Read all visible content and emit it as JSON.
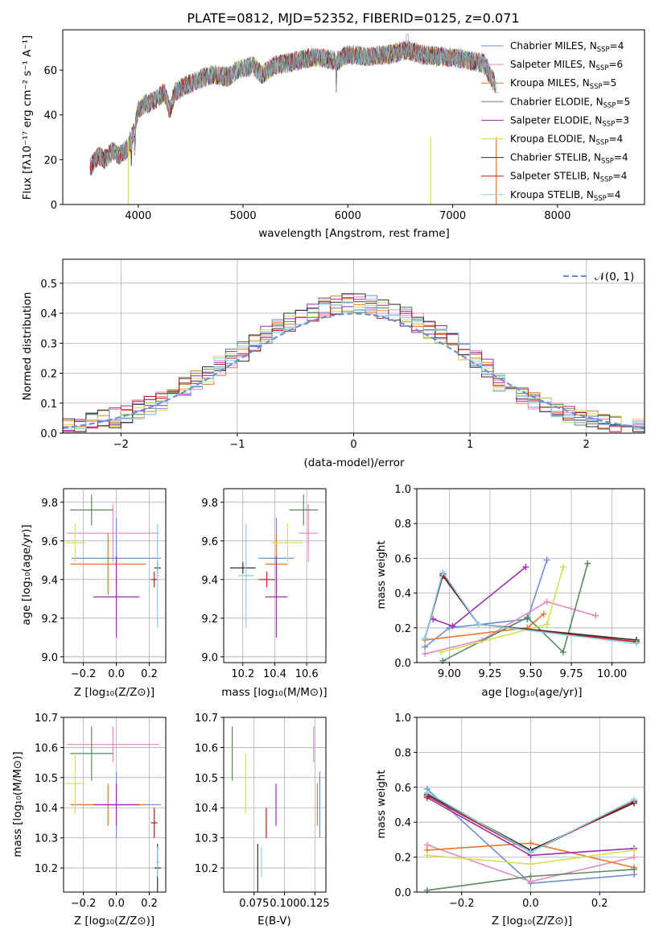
{
  "figure": {
    "title": "PLATE=0812, MJD=52352, FIBERID=0125, z=0.071"
  },
  "models": [
    {
      "name": "Chabrier MILES",
      "nssp": "4",
      "color": "#6b8fd6",
      "age": 9.51,
      "age_err": 0.21,
      "mass": 10.41,
      "mass_err": 0.11,
      "Z": 0.0,
      "Z_err": 0.27,
      "ebv": 0.129,
      "ebv_err": 0.02
    },
    {
      "name": "Salpeter MILES",
      "nssp": "6",
      "color": "#e68ac0",
      "age": 9.64,
      "age_err": 0.15,
      "mass": 10.61,
      "mass_err": 0.06,
      "Z": -0.02,
      "Z_err": 0.28,
      "ebv": 0.124,
      "ebv_err": 0.067
    },
    {
      "name": "Kroupa MILES",
      "nssp": "5",
      "color": "#e5792c",
      "age": 9.48,
      "age_err": 0.16,
      "mass": 10.41,
      "mass_err": 0.07,
      "Z": -0.05,
      "Z_err": 0.23,
      "ebv": 0.127,
      "ebv_err": 0.11
    },
    {
      "name": "Chabrier ELODIE",
      "nssp": "5",
      "color": "#5a8a5e",
      "age": 9.76,
      "age_err": 0.08,
      "mass": 10.58,
      "mass_err": 0.09,
      "Z": -0.15,
      "Z_err": 0.13,
      "ebv": 0.057,
      "ebv_err": 0.095
    },
    {
      "name": "Salpeter ELODIE",
      "nssp": "3",
      "color": "#9b2fb0",
      "age": 9.31,
      "age_err": 0.21,
      "mass": 10.41,
      "mass_err": 0.07,
      "Z": 0.0,
      "Z_err": 0.14,
      "ebv": 0.093,
      "ebv_err": 0.05
    },
    {
      "name": "Kroupa ELODIE",
      "nssp": "4",
      "color": "#d4e050",
      "age": 9.59,
      "age_err": 0.1,
      "mass": 10.48,
      "mass_err": 0.1,
      "Z": -0.25,
      "Z_err": 0.06,
      "ebv": 0.068,
      "ebv_err": 0.1
    },
    {
      "name": "Chabrier STELIB",
      "nssp": "4",
      "color": "#2e2e2e",
      "age": 9.46,
      "age_err": 0.03,
      "mass": 10.2,
      "mass_err": 0.08,
      "Z": 0.25,
      "Z_err": 0.02,
      "ebv": 0.078,
      "ebv_err": 0.05
    },
    {
      "name": "Salpeter STELIB",
      "nssp": "4",
      "color": "#b81c1c",
      "age": 9.4,
      "age_err": 0.04,
      "mass": 10.35,
      "mass_err": 0.05,
      "Z": 0.23,
      "Z_err": 0.02,
      "ebv": 0.085,
      "ebv_err": 0.04
    },
    {
      "name": "Kroupa STELIB",
      "nssp": "4",
      "color": "#88d2e6",
      "age": 9.42,
      "age_err": 0.27,
      "mass": 10.22,
      "mass_err": 0.05,
      "Z": 0.25,
      "Z_err": 0.01,
      "ebv": 0.081,
      "ebv_err": 0.02
    }
  ],
  "chart_data": [
    {
      "type": "line",
      "panel": "spectrum",
      "title": "PLATE=0812, MJD=52352, FIBERID=0125, z=0.071",
      "xlabel": "wavelength [Angstrom, rest frame]",
      "ylabel": "Flux [fλ10⁻¹⁷ erg cm⁻² s⁻¹ A⁻¹]",
      "xlim": [
        3280,
        8830
      ],
      "ylim": [
        0,
        78
      ],
      "xticks": [
        "4000",
        "5000",
        "6000",
        "7000",
        "8000"
      ],
      "yticks": [
        "0",
        "20",
        "40",
        "60"
      ],
      "legend": "top-right",
      "spectrum_anchors": {
        "x": [
          3550,
          3620,
          3680,
          3750,
          3820,
          3900,
          3960,
          4000,
          4060,
          4100,
          4200,
          4250,
          4300,
          4350,
          4450,
          4550,
          4700,
          4861,
          4950,
          5100,
          5175,
          5300,
          5500,
          5700,
          5890,
          6000,
          6200,
          6400,
          6563,
          6700,
          6900,
          7100,
          7300,
          7400
        ],
        "y": [
          17,
          22,
          20,
          24,
          22,
          25,
          33,
          42,
          45,
          45,
          48,
          50,
          42,
          50,
          53,
          55,
          58,
          57,
          60,
          62,
          58,
          62,
          64,
          66,
          64,
          67,
          66,
          67,
          69,
          67,
          66,
          65,
          63,
          54
        ]
      }
    },
    {
      "type": "bar",
      "panel": "residual-histogram",
      "xlabel": "(data-model)/error",
      "ylabel": "Normed distribution",
      "xlim": [
        -2.5,
        2.5
      ],
      "ylim": [
        0,
        0.58
      ],
      "xticks": [
        "−2",
        "−1",
        "0",
        "1",
        "2"
      ],
      "yticks": [
        "0.0",
        "0.1",
        "0.2",
        "0.3",
        "0.4",
        "0.5"
      ],
      "legend_label": "𝒩(0, 1)",
      "legend": "top-right",
      "bin_width": 0.1,
      "gaussian": {
        "mean": 0,
        "sigma": 1,
        "color": "#6b8fd6"
      }
    },
    {
      "type": "scatter",
      "panel": "age-vs-Z",
      "xlabel": "Z [log₁₀(Z/Z⊙)]",
      "ylabel": "age  [log₁₀(age/yr)]",
      "xlim": [
        -0.32,
        0.3
      ],
      "ylim": [
        8.97,
        9.87
      ],
      "xticks": [
        -0.2,
        0.0,
        0.2
      ],
      "xtick_labels": [
        "−0.2",
        "0.0",
        "0.2"
      ],
      "yticks": [
        9.0,
        9.2,
        9.4,
        9.6,
        9.8
      ],
      "ytick_labels": [
        "9.0",
        "9.2",
        "9.4",
        "9.6",
        "9.8"
      ]
    },
    {
      "type": "scatter",
      "panel": "age-vs-mass",
      "xlabel": "mass [log₁₀(M/M⊙)]",
      "ylabel": "",
      "xlim": [
        10.08,
        10.72
      ],
      "ylim": [
        8.97,
        9.87
      ],
      "xticks": [
        10.2,
        10.4,
        10.6
      ],
      "xtick_labels": [
        "10.2",
        "10.4",
        "10.6"
      ],
      "yticks": [
        9.0,
        9.2,
        9.4,
        9.6,
        9.8
      ],
      "ytick_labels": [
        "9.0",
        "9.2",
        "9.4",
        "9.6",
        "9.8"
      ]
    },
    {
      "type": "line",
      "panel": "mass-weight-vs-age",
      "xlabel": "age  [log₁₀(age/yr)]",
      "ylabel": "mass weight",
      "xlim": [
        8.8,
        10.2
      ],
      "ylim": [
        0,
        1
      ],
      "xticks": [
        9.0,
        9.25,
        9.5,
        9.75,
        10.0
      ],
      "xtick_labels": [
        "9.00",
        "9.25",
        "9.50",
        "9.75",
        "10.00"
      ],
      "yticks": [
        0,
        0.2,
        0.4,
        0.6,
        0.8,
        1.0
      ],
      "ytick_labels": [
        "0.0",
        "0.2",
        "0.4",
        "0.6",
        "0.8",
        "1.0"
      ],
      "series": [
        {
          "color": "#6b8fd6",
          "x": [
            8.85,
            9.0,
            9.48,
            9.6
          ],
          "y": [
            0.09,
            0.2,
            0.25,
            0.59
          ]
        },
        {
          "color": "#e68ac0",
          "x": [
            8.85,
            9.2,
            9.6,
            9.9
          ],
          "y": [
            0.05,
            0.13,
            0.35,
            0.27
          ]
        },
        {
          "color": "#e5792c",
          "x": [
            8.85,
            9.48,
            9.58
          ],
          "y": [
            0.13,
            0.2,
            0.28
          ]
        },
        {
          "color": "#5a8a5e",
          "x": [
            8.96,
            9.48,
            9.7,
            9.85
          ],
          "y": [
            0.01,
            0.26,
            0.06,
            0.57
          ]
        },
        {
          "color": "#9b2fb0",
          "x": [
            8.9,
            9.02,
            9.47
          ],
          "y": [
            0.25,
            0.21,
            0.55
          ]
        },
        {
          "color": "#d4e050",
          "x": [
            8.95,
            9.6,
            9.7
          ],
          "y": [
            0.06,
            0.22,
            0.55
          ]
        },
        {
          "color": "#2e2e2e",
          "x": [
            8.85,
            8.96,
            9.18,
            10.15
          ],
          "y": [
            0.14,
            0.5,
            0.22,
            0.13
          ]
        },
        {
          "color": "#b81c1c",
          "x": [
            8.85,
            8.96,
            9.18,
            10.15
          ],
          "y": [
            0.14,
            0.51,
            0.22,
            0.12
          ]
        },
        {
          "color": "#88d2e6",
          "x": [
            8.85,
            8.96,
            9.18,
            10.15
          ],
          "y": [
            0.14,
            0.52,
            0.22,
            0.11
          ]
        }
      ]
    },
    {
      "type": "scatter",
      "panel": "mass-vs-Z",
      "xlabel": "Z [log₁₀(Z/Z⊙)]",
      "ylabel": "mass [log₁₀(M/M⊙)]",
      "xlim": [
        -0.32,
        0.3
      ],
      "ylim": [
        10.12,
        10.7
      ],
      "xticks": [
        -0.2,
        0.0,
        0.2
      ],
      "xtick_labels": [
        "−0.2",
        "0.0",
        "0.2"
      ],
      "yticks": [
        10.2,
        10.3,
        10.4,
        10.5,
        10.6,
        10.7
      ],
      "ytick_labels": [
        "10.2",
        "10.3",
        "10.4",
        "10.5",
        "10.6",
        "10.7"
      ]
    },
    {
      "type": "scatter",
      "panel": "mass-vs-ebv",
      "xlabel": "E(B-V)",
      "ylabel": "",
      "xlim": [
        0.05,
        0.134
      ],
      "ylim": [
        10.12,
        10.7
      ],
      "xticks": [
        0.075,
        0.1,
        0.125
      ],
      "xtick_labels": [
        "0.075",
        "0.100",
        "0.125"
      ],
      "xtick_joined": "0.1000.125",
      "yticks": [
        10.2,
        10.3,
        10.4,
        10.5,
        10.6,
        10.7
      ],
      "ytick_labels": [
        "10.2",
        "10.3",
        "10.4",
        "10.5",
        "10.6",
        "10.7"
      ]
    },
    {
      "type": "line",
      "panel": "mass-weight-vs-Z",
      "xlabel": "Z [log₁₀(Z/Z⊙)]",
      "ylabel": "mass weight",
      "xlim": [
        -0.33,
        0.33
      ],
      "ylim": [
        0,
        1
      ],
      "xticks": [
        -0.2,
        0.0,
        0.2
      ],
      "xtick_labels": [
        "−0.2",
        "0.0",
        "0.2"
      ],
      "yticks": [
        0,
        0.2,
        0.4,
        0.6,
        0.8,
        1.0
      ],
      "ytick_labels": [
        "0.0",
        "0.2",
        "0.4",
        "0.6",
        "0.8",
        "1.0"
      ],
      "series": [
        {
          "color": "#6b8fd6",
          "x": [
            -0.3,
            0.0,
            0.3
          ],
          "y": [
            0.59,
            0.05,
            0.1
          ]
        },
        {
          "color": "#e68ac0",
          "x": [
            -0.3,
            0.0,
            0.3
          ],
          "y": [
            0.27,
            0.06,
            0.2
          ]
        },
        {
          "color": "#e5792c",
          "x": [
            -0.3,
            0.0,
            0.3
          ],
          "y": [
            0.24,
            0.28,
            0.14
          ]
        },
        {
          "color": "#5a8a5e",
          "x": [
            -0.3,
            0.0,
            0.3
          ],
          "y": [
            0.01,
            0.09,
            0.13
          ]
        },
        {
          "color": "#9b2fb0",
          "x": [
            -0.3,
            0.0,
            0.3
          ],
          "y": [
            0.54,
            0.21,
            0.25
          ]
        },
        {
          "color": "#d4e050",
          "x": [
            -0.3,
            0.0,
            0.3
          ],
          "y": [
            0.21,
            0.16,
            0.24
          ]
        },
        {
          "color": "#2e2e2e",
          "x": [
            -0.3,
            0.0,
            0.3
          ],
          "y": [
            0.56,
            0.24,
            0.51
          ]
        },
        {
          "color": "#b81c1c",
          "x": [
            -0.3,
            0.0,
            0.3
          ],
          "y": [
            0.55,
            0.23,
            0.52
          ]
        },
        {
          "color": "#88d2e6",
          "x": [
            -0.3,
            0.0,
            0.3
          ],
          "y": [
            0.57,
            0.23,
            0.53
          ]
        }
      ]
    }
  ]
}
